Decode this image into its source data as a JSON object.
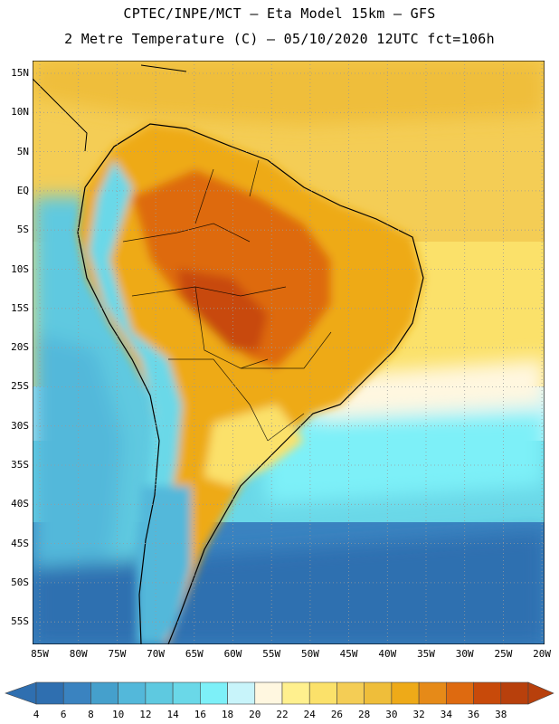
{
  "header": {
    "line1": "CPTEC/INPE/MCT –  Eta Model 15km – GFS",
    "line2": "2 Metre Temperature (C) – 05/10/2020 12UTC fct=106h"
  },
  "map": {
    "lat_labels": [
      "15N",
      "10N",
      "5N",
      "EQ",
      "5S",
      "10S",
      "15S",
      "20S",
      "25S",
      "30S",
      "35S",
      "40S",
      "45S",
      "50S",
      "55S"
    ],
    "lon_labels": [
      "85W",
      "80W",
      "75W",
      "70W",
      "65W",
      "60W",
      "55W",
      "50W",
      "45W",
      "40W",
      "35W",
      "30W",
      "25W",
      "20W"
    ],
    "colors": {
      "c4": "#2f6fb0",
      "c6": "#3a83c0",
      "c8": "#45a0cc",
      "c10": "#53b8da",
      "c12": "#5ec9e0",
      "c14": "#6ad8e8",
      "c16": "#7df0f8",
      "c18": "#c8f4fa",
      "c20": "#fff7e0",
      "c22": "#fff08e",
      "c24": "#fbe16a",
      "c26": "#f4cd55",
      "c28": "#efbe3a",
      "c30": "#eeaa18",
      "c32": "#e68a18",
      "c34": "#de6a10",
      "c36": "#c84a0a",
      "c38": "#b8400c"
    }
  },
  "colorbar": {
    "labels": [
      "4",
      "6",
      "8",
      "10",
      "12",
      "14",
      "16",
      "18",
      "20",
      "22",
      "24",
      "26",
      "28",
      "30",
      "32",
      "34",
      "36",
      "38"
    ],
    "colors": [
      "#2f6fb0",
      "#3a83c0",
      "#45a0cc",
      "#53b8da",
      "#5ec9e0",
      "#6ad8e8",
      "#7df0f8",
      "#c8f4fa",
      "#fff7e0",
      "#fff08e",
      "#fbe16a",
      "#f4cd55",
      "#efbe3a",
      "#eeaa18",
      "#e68a18",
      "#de6a10",
      "#c84a0a",
      "#b8400c"
    ],
    "under_color": "#2f6fb0",
    "over_color": "#b8400c"
  }
}
